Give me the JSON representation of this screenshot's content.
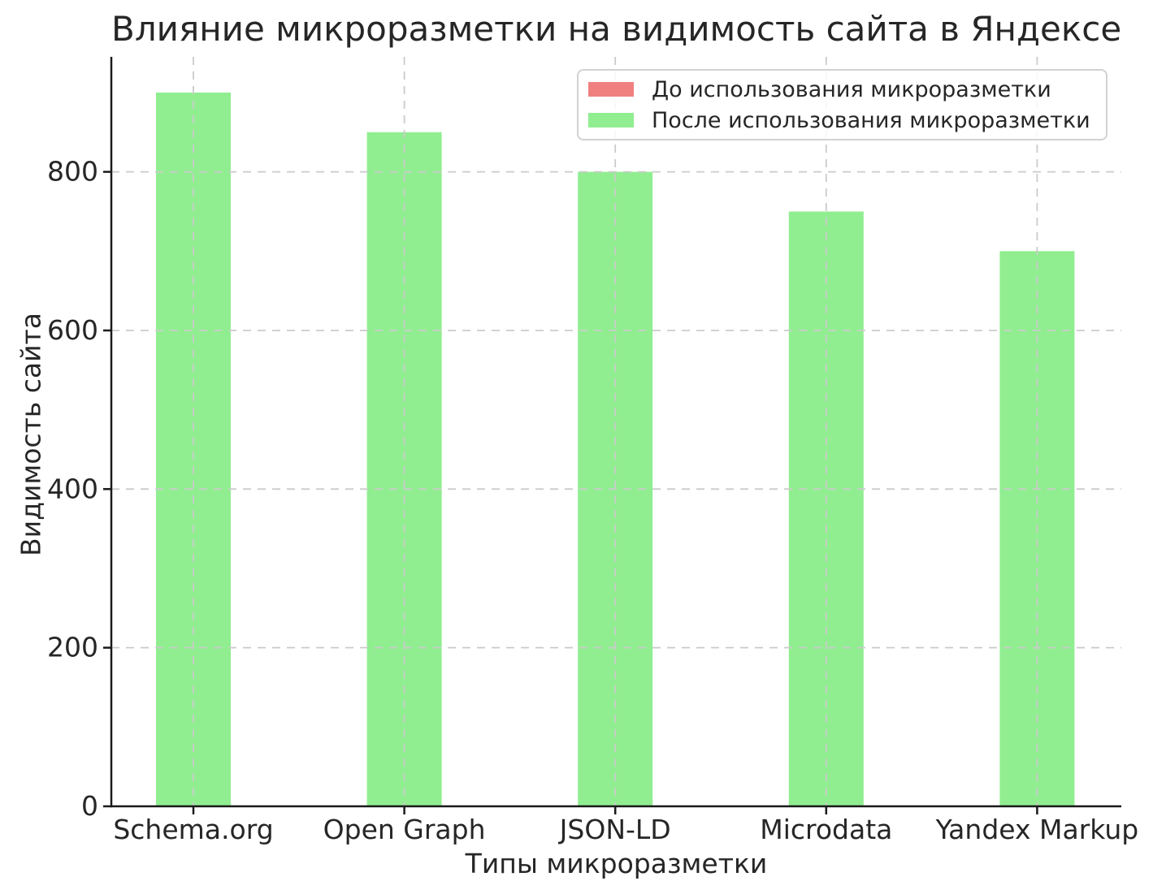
{
  "chart_data": {
    "type": "bar",
    "title": "Влияние микроразметки на видимость сайта в Яндексе",
    "xlabel": "Типы микроразметки",
    "ylabel": "Видимость сайта",
    "categories": [
      "Schema.org",
      "Open Graph",
      "JSON-LD",
      "Microdata",
      "Yandex Markup"
    ],
    "series": [
      {
        "name": "До использования микроразметки",
        "color": "#F08080",
        "values": [],
        "bars_visible": false
      },
      {
        "name": "После использования микроразметки",
        "color": "#90EE90",
        "values": [
          900,
          850,
          800,
          750,
          700
        ],
        "bars_visible": true
      }
    ],
    "yticks": [
      0,
      200,
      400,
      600,
      800
    ],
    "ylim": [
      0,
      945
    ],
    "grid": true,
    "grid_style": "dashed",
    "legend_position": "upper right"
  },
  "colors": {
    "grid": "#cbcbcb",
    "axis": "#1a1a1a",
    "text": "#262626"
  }
}
